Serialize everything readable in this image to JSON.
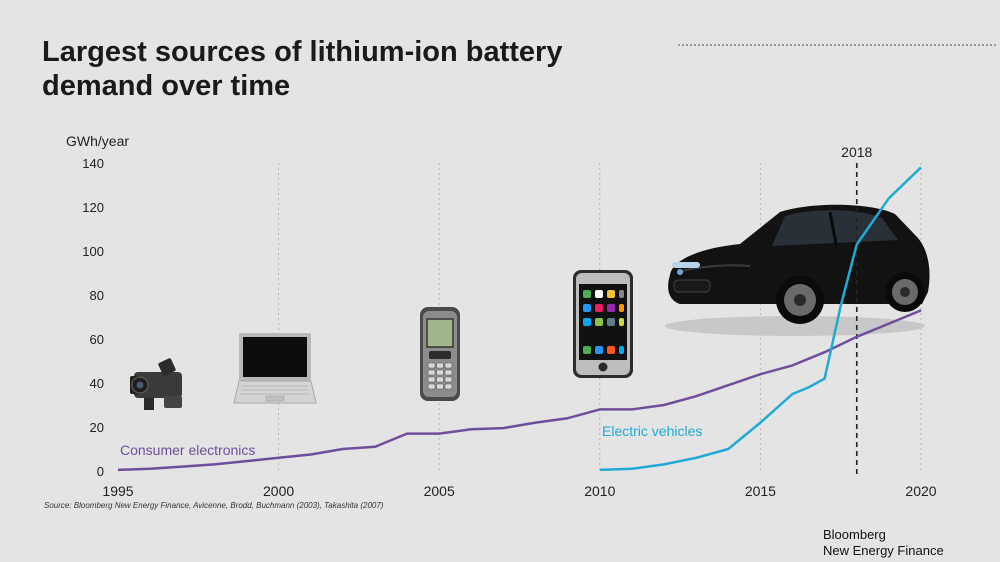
{
  "header": {
    "title": "Largest sources of lithium-ion battery demand over time"
  },
  "footer": {
    "source": "Source: Bloomberg New Energy Finance, Avicenne, Brodd, Buchmann (2003), Takashita (2007)",
    "brand_line1": "Bloomberg",
    "brand_line2": "New Energy Finance"
  },
  "chart_data": {
    "type": "line",
    "ylabel": "GWh/year",
    "xlim": [
      1995,
      2020
    ],
    "ylim": [
      0,
      140
    ],
    "x_ticks": [
      "1995",
      "2000",
      "2005",
      "2010",
      "2015",
      "2020"
    ],
    "y_ticks": [
      "0",
      "20",
      "40",
      "60",
      "80",
      "100",
      "120",
      "140"
    ],
    "grid": "vertical dotted at x ticks",
    "marker": {
      "x": 2018,
      "label": "2018"
    },
    "series": [
      {
        "name": "Consumer electronics",
        "color": "#6f4f9c",
        "x": [
          1995,
          1996,
          1997,
          1998,
          1999,
          2000,
          2001,
          2002,
          2003,
          2004,
          2005,
          2006,
          2007,
          2008,
          2009,
          2010,
          2011,
          2012,
          2013,
          2014,
          2015,
          2016,
          2017,
          2018,
          2019,
          2020
        ],
        "y": [
          0.5,
          1,
          2,
          3,
          4.5,
          6,
          7.5,
          10,
          11,
          17,
          17,
          19,
          19.5,
          22,
          24,
          28,
          28,
          30,
          34,
          39,
          44,
          48,
          54,
          61,
          67,
          73
        ]
      },
      {
        "name": "Electric vehicles",
        "color": "#1faad6",
        "x": [
          2010,
          2011,
          2012,
          2013,
          2014,
          2015,
          2016,
          2016.5,
          2017,
          2017.5,
          2018,
          2019,
          2020
        ],
        "y": [
          0.5,
          1,
          3,
          6,
          10,
          22,
          35,
          38,
          42,
          75,
          103,
          124,
          138
        ]
      }
    ]
  },
  "illustrations": [
    {
      "icon": "camcorder-icon",
      "year": 1996.2
    },
    {
      "icon": "laptop-icon",
      "year": 1999.9
    },
    {
      "icon": "mobile-phone-icon",
      "year": 2005
    },
    {
      "icon": "smartphone-icon",
      "year": 2010
    },
    {
      "icon": "electric-car-icon",
      "year": 2017.4
    }
  ]
}
